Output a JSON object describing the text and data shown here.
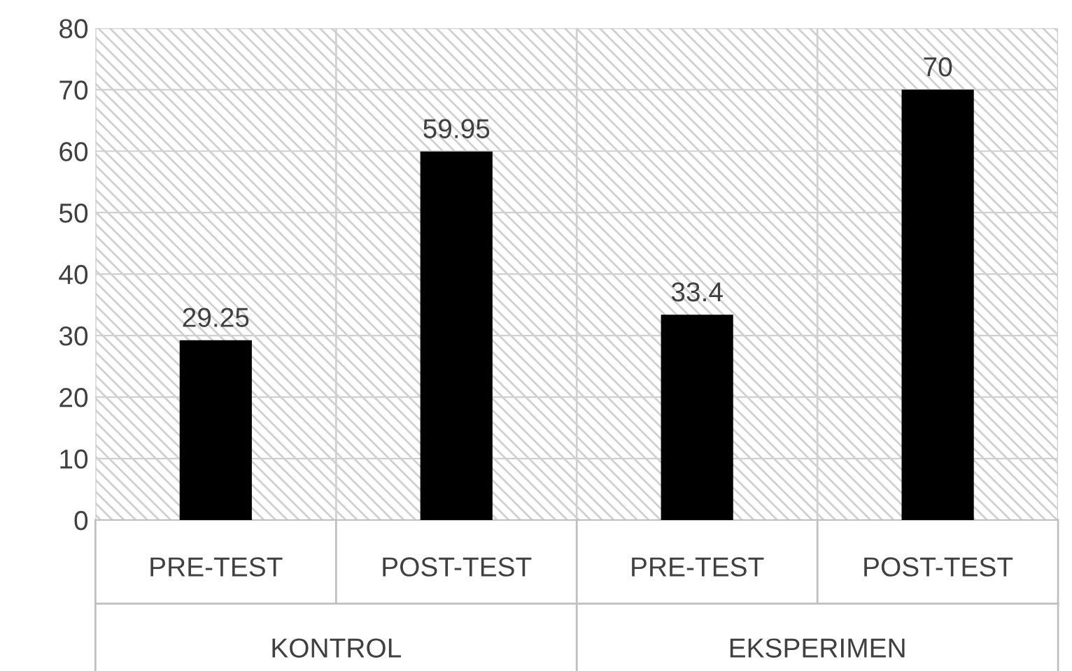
{
  "chart_data": {
    "type": "bar",
    "categories": [
      "PRE-TEST",
      "POST-TEST",
      "PRE-TEST",
      "POST-TEST"
    ],
    "values": [
      29.25,
      59.95,
      33.4,
      70
    ],
    "color": "#000000",
    "data_labels": true,
    "value_labels": [
      "29.25",
      "59.95",
      "33.4",
      "70"
    ],
    "annotations": [
      "KONTROL",
      "EKSPERIMEN"
    ],
    "ylim": [
      0,
      80
    ],
    "yticks": [
      0,
      10,
      20,
      30,
      40,
      50,
      60,
      70,
      80
    ],
    "grid": true
  }
}
